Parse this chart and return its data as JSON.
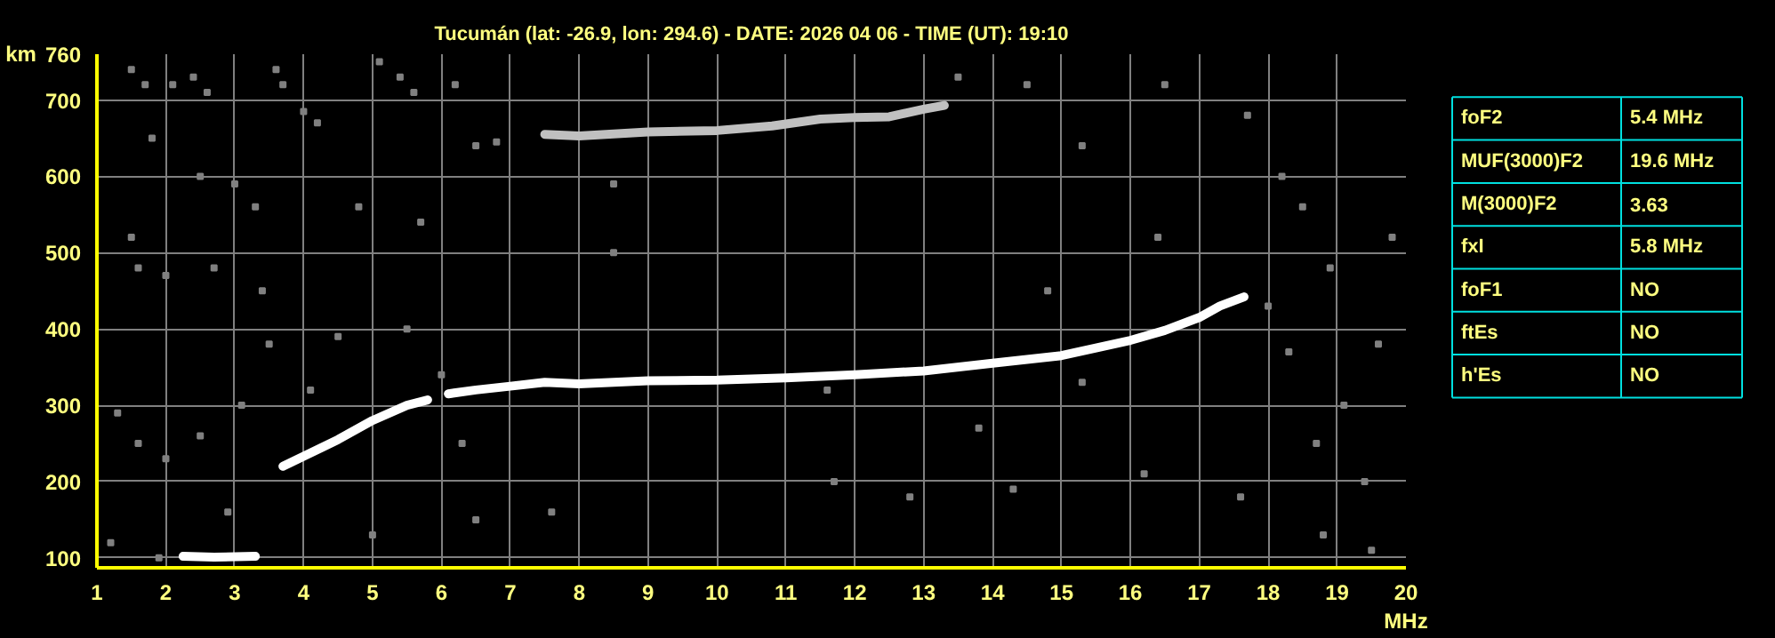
{
  "chart_data": [
    {
      "type": "line",
      "title": "Tucumán (lat: -26.9, lon: 294.6) - DATE: 2026 04 06 - TIME (UT): 19:10",
      "xlabel": "MHz",
      "ylabel": "km",
      "xlim": [
        1,
        20
      ],
      "ylim": [
        87,
        760
      ],
      "xticks": [
        1,
        2,
        3,
        4,
        5,
        6,
        7,
        8,
        9,
        10,
        11,
        12,
        13,
        14,
        15,
        16,
        17,
        18,
        19,
        20
      ],
      "yticks": [
        100,
        200,
        300,
        400,
        500,
        600,
        700,
        760
      ],
      "grid": true,
      "series": [
        {
          "color": "#ffffff",
          "x": [
            2.25,
            2.7,
            3.3
          ],
          "values": [
            102,
            101,
            102
          ]
        },
        {
          "color": "#ffffff",
          "x": [
            3.7,
            4.0,
            4.5,
            5.0,
            5.5,
            5.8
          ],
          "values": [
            220,
            233,
            255,
            280,
            300,
            307
          ]
        },
        {
          "color": "#ffffff",
          "x": [
            6.1,
            6.5,
            7.0,
            7.5,
            8.0,
            9.0,
            10.0,
            11.0,
            12.0,
            13.0,
            14.0,
            14.5,
            15.0,
            15.5,
            16.0,
            16.5,
            17.0,
            17.3,
            17.65
          ],
          "values": [
            315,
            320,
            325,
            330,
            328,
            332,
            333,
            336,
            340,
            345,
            355,
            360,
            365,
            375,
            385,
            398,
            415,
            430,
            442
          ]
        },
        {
          "color": "#c0c0c0",
          "x": [
            7.5,
            8.0,
            9.0,
            10.0,
            10.8,
            11.5,
            12.0,
            12.5,
            13.0,
            13.3
          ],
          "values": [
            655,
            653,
            658,
            660,
            666,
            675,
            677,
            678,
            688,
            693
          ]
        },
        {
          "type": "scatter",
          "marker": "square",
          "color": "#808080",
          "x": [
            1.5,
            1.7,
            2.1,
            2.4,
            2.6,
            3.6,
            3.7,
            4.2,
            5.1,
            5.4,
            5.6,
            6.2,
            6.5,
            6.8,
            4.0,
            1.8,
            2.5,
            3.0,
            3.3,
            4.8,
            5.7,
            1.5,
            1.6,
            2.0,
            2.7,
            3.4,
            1.3,
            1.6,
            2.0,
            2.5,
            3.1,
            3.5,
            4.1,
            4.5,
            5.5,
            6.0,
            6.3,
            5.0,
            6.5,
            2.9,
            1.2,
            1.9,
            8.5,
            8.5,
            7.6,
            11.7,
            11.6,
            13.5,
            14.5,
            15.3,
            16.5,
            17.7,
            18.2,
            18.5,
            18.9,
            19.8,
            18.3,
            19.1,
            18.7,
            19.4,
            17.6,
            18.8,
            19.5,
            16.2,
            14.3,
            13.8,
            15.3,
            12.8,
            18.0,
            19.6,
            14.8,
            16.4
          ],
          "values": [
            740,
            720,
            720,
            730,
            710,
            740,
            720,
            670,
            750,
            730,
            710,
            720,
            640,
            645,
            685,
            650,
            600,
            590,
            560,
            560,
            540,
            520,
            480,
            470,
            480,
            450,
            290,
            250,
            230,
            260,
            300,
            380,
            320,
            390,
            400,
            340,
            250,
            130,
            150,
            160,
            120,
            100,
            590,
            500,
            160,
            200,
            320,
            730,
            720,
            640,
            720,
            680,
            600,
            560,
            480,
            520,
            370,
            300,
            250,
            200,
            180,
            130,
            110,
            210,
            190,
            270,
            330,
            180,
            430,
            380,
            450,
            520
          ]
        }
      ]
    },
    {
      "type": "other",
      "annotations": [
        "foF2",
        "5.4 MHz",
        "MUF(3000)F2",
        "19.6 MHz",
        "M(3000)F2",
        "3.63",
        "fxI",
        "5.8 MHz",
        "foF1",
        "NO",
        "ftEs",
        "NO",
        "h'Es",
        "NO"
      ]
    }
  ]
}
